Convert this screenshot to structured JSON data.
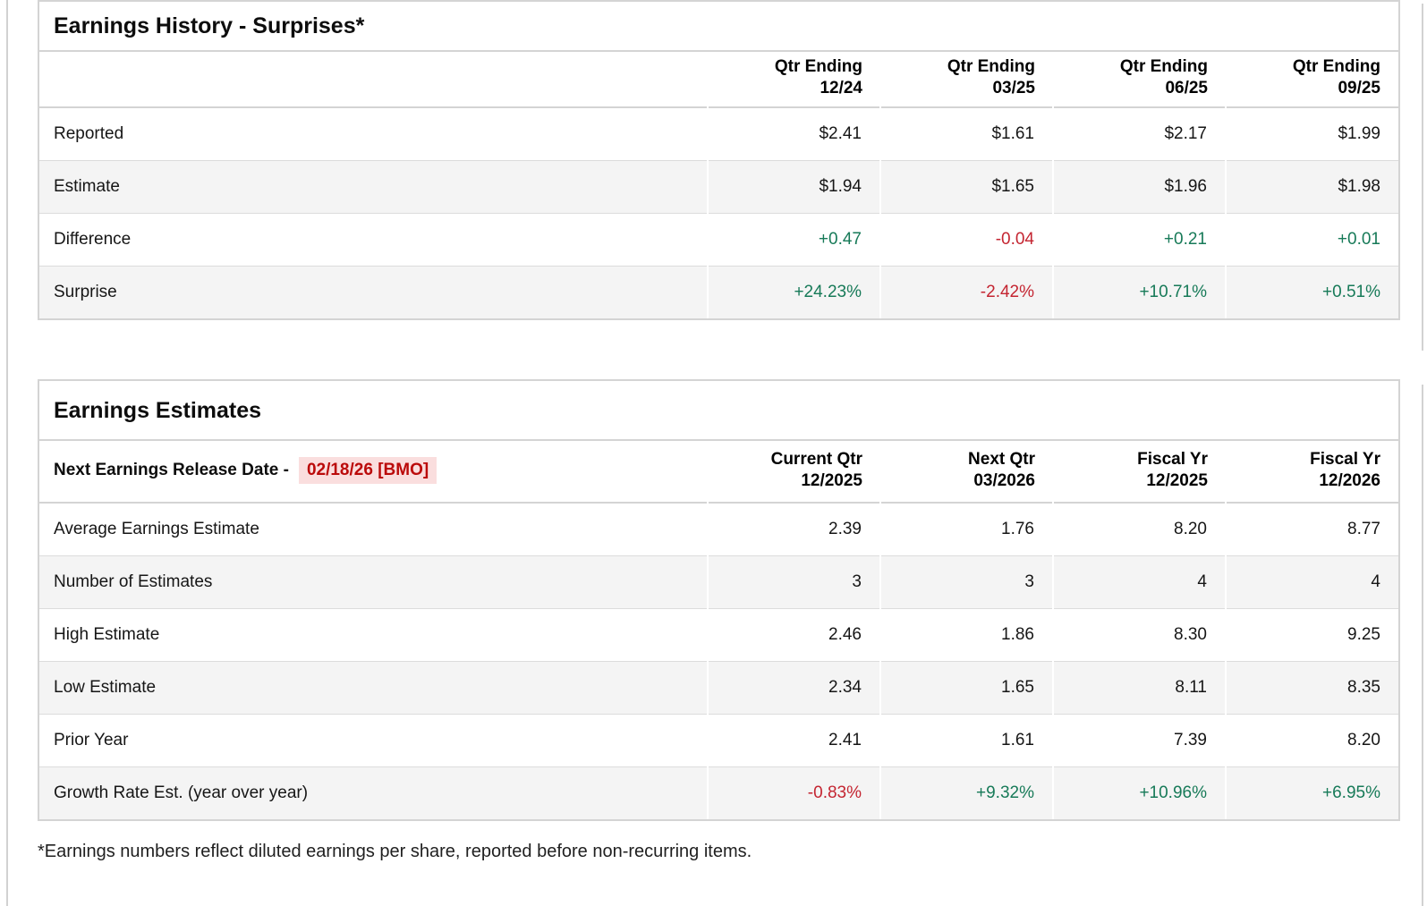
{
  "page": {
    "footnote": "*Earnings numbers reflect diluted earnings per share, reported before non-recurring items."
  },
  "colors": {
    "positive_green": "#177a58",
    "negative_red": "#c42531",
    "release_date_red": "#bb0a0a",
    "release_date_highlight": "#fadede",
    "alt_row_gray": "#f4f4f4"
  },
  "history": {
    "title": "Earnings History - Surprises*",
    "columns": [
      {
        "line1": "Qtr Ending",
        "line2": "12/24"
      },
      {
        "line1": "Qtr Ending",
        "line2": "03/25"
      },
      {
        "line1": "Qtr Ending",
        "line2": "06/25"
      },
      {
        "line1": "Qtr Ending",
        "line2": "09/25"
      }
    ],
    "rows": [
      {
        "label": "Reported",
        "values": [
          "$2.41",
          "$1.61",
          "$2.17",
          "$1.99"
        ]
      },
      {
        "label": "Estimate",
        "values": [
          "$1.94",
          "$1.65",
          "$1.96",
          "$1.98"
        ]
      },
      {
        "label": "Difference",
        "values": [
          "+0.47",
          "-0.04",
          "+0.21",
          "+0.01"
        ]
      },
      {
        "label": "Surprise",
        "values": [
          "+24.23%",
          "-2.42%",
          "+10.71%",
          "+0.51%"
        ]
      }
    ]
  },
  "estimates": {
    "title": "Earnings Estimates",
    "release_date_label": "Next Earnings Release Date -",
    "release_date_value": "02/18/26 [BMO]",
    "columns": [
      {
        "line1": "Current Qtr",
        "line2": "12/2025"
      },
      {
        "line1": "Next Qtr",
        "line2": "03/2026"
      },
      {
        "line1": "Fiscal Yr",
        "line2": "12/2025"
      },
      {
        "line1": "Fiscal Yr",
        "line2": "12/2026"
      }
    ],
    "rows": [
      {
        "label": "Average Earnings Estimate",
        "values": [
          "2.39",
          "1.76",
          "8.20",
          "8.77"
        ]
      },
      {
        "label": "Number of Estimates",
        "values": [
          "3",
          "3",
          "4",
          "4"
        ]
      },
      {
        "label": "High Estimate",
        "values": [
          "2.46",
          "1.86",
          "8.30",
          "9.25"
        ]
      },
      {
        "label": "Low Estimate",
        "values": [
          "2.34",
          "1.65",
          "8.11",
          "8.35"
        ]
      },
      {
        "label": "Prior Year",
        "values": [
          "2.41",
          "1.61",
          "7.39",
          "8.20"
        ]
      },
      {
        "label": "Growth Rate Est. (year over year)",
        "values": [
          "-0.83%",
          "+9.32%",
          "+10.96%",
          "+6.95%"
        ]
      }
    ]
  }
}
